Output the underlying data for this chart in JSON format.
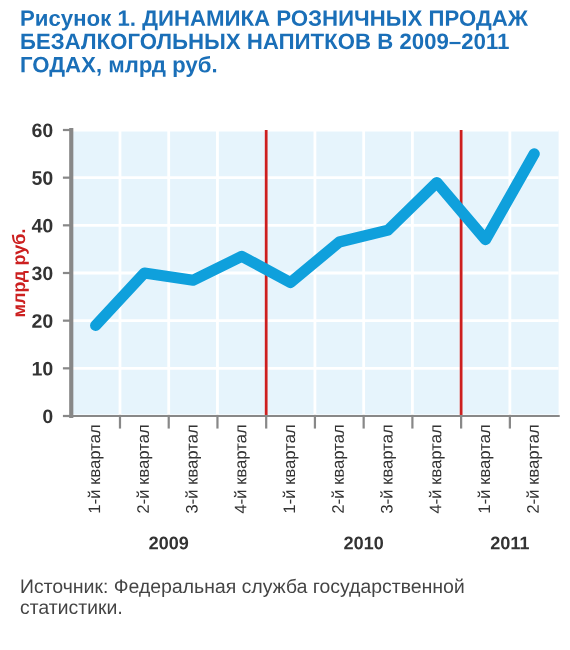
{
  "chart_data": {
    "type": "line",
    "title": "Рисунок 1. ДИНАМИКА РОЗНИЧНЫХ ПРОДАЖ\nБЕЗАЛКОГОЛЬНЫХ НАПИТКОВ В 2009–2011\nГОДАХ, млрд руб.",
    "ylabel": "млрд руб.",
    "categories": [
      "1-й квартал",
      "2-й квартал",
      "3-й квартал",
      "4-й квартал",
      "1-й квартал",
      "2-й квартал",
      "3-й квартал",
      "4-й квартал",
      "1-й квартал",
      "2-й квартал"
    ],
    "series": [
      {
        "color": "#0fa0dc",
        "values": [
          19,
          30,
          28.5,
          33.5,
          28,
          36.5,
          39,
          49,
          37,
          55
        ]
      }
    ],
    "ylim": [
      0,
      60
    ],
    "yticks": [
      0,
      10,
      20,
      30,
      40,
      50,
      60
    ],
    "grid": true,
    "marker": "none",
    "line_style": "solid",
    "legend": false,
    "annotations": [
      "2009",
      "2010",
      "2011",
      "Источник: Федеральная служба государственной статистики."
    ]
  }
}
